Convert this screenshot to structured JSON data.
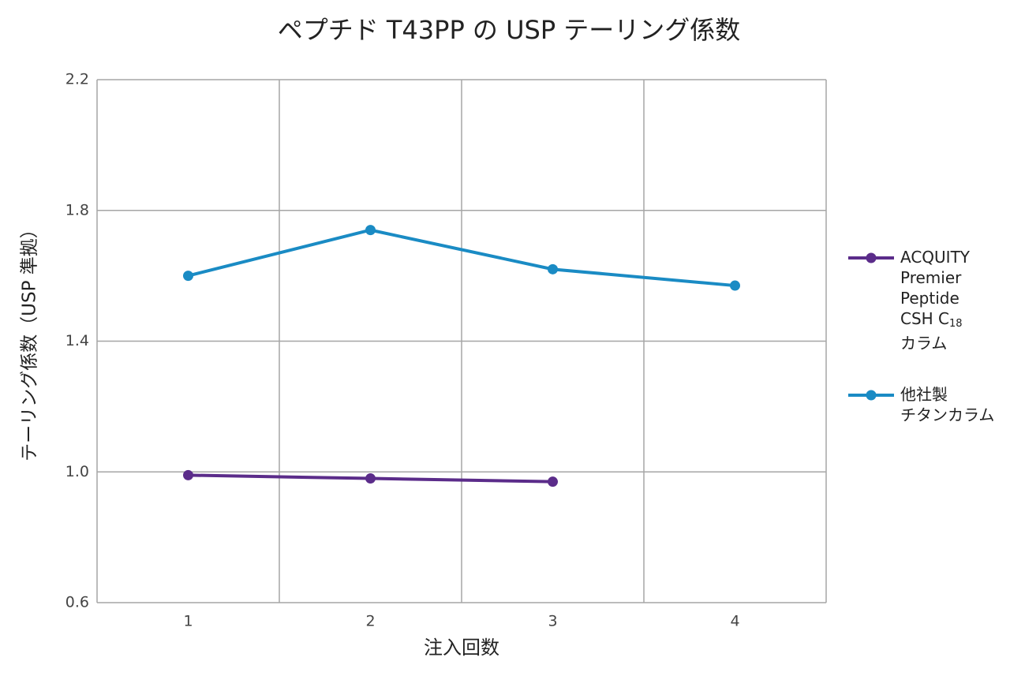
{
  "chart_data": {
    "type": "line",
    "title": "ペプチド T43PP の USP テーリング係数",
    "xlabel": "注入回数",
    "ylabel": "テーリング係数（USP 準拠）",
    "categories": [
      "1",
      "2",
      "3",
      "4"
    ],
    "series": [
      {
        "name": "ACQUITY\nPremier\nPeptide\nCSH C18\nカラム",
        "color": "#5b2c8a",
        "values": [
          0.99,
          0.98,
          0.97,
          null
        ]
      },
      {
        "name": "他社製\nチタンカラム",
        "color": "#1a8bc4",
        "values": [
          1.6,
          1.74,
          1.62,
          1.57
        ]
      }
    ],
    "ylim": [
      0.6,
      2.2
    ],
    "yticks": [
      0.6,
      {
        "value": 1,
        "label": "1.0"
      },
      1.4,
      1.8,
      2.2
    ],
    "grid": true,
    "legend": "right"
  }
}
